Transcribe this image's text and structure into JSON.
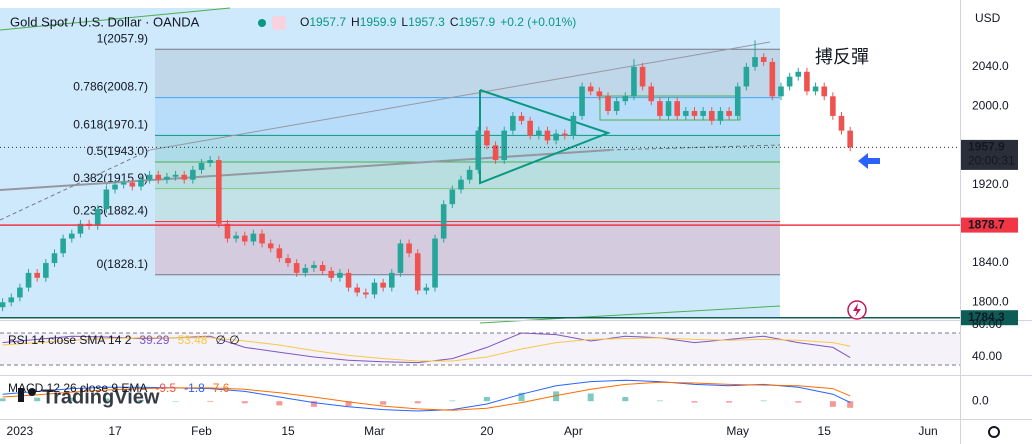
{
  "header": {
    "title": "Gold Spot / U.S. Dollar · OANDA",
    "ohlc": [
      {
        "label": "O",
        "value": 1957.7
      },
      {
        "label": "H",
        "value": 1959.9
      },
      {
        "label": "L",
        "value": 1957.3
      },
      {
        "label": "C",
        "value": 1957.9
      }
    ],
    "change": "+0.2 (+0.01%)",
    "value_color": "#089981"
  },
  "watermark": "TradingView",
  "chart_data": [
    {
      "type": "candlestick",
      "currency": "USD",
      "up_color": "#26a69a",
      "down_color": "#ef5350",
      "xlim": [
        -0.3,
        110.7
      ],
      "xticks": [
        {
          "value": 2,
          "label": "2023"
        },
        {
          "value": 13,
          "label": "17"
        },
        {
          "value": 23,
          "label": "Feb"
        },
        {
          "value": 33,
          "label": "15"
        },
        {
          "value": 43,
          "label": "Mar"
        },
        {
          "value": 56,
          "label": "20"
        },
        {
          "value": 66,
          "label": "Apr"
        },
        {
          "value": 85,
          "label": "May"
        },
        {
          "value": 95,
          "label": "15"
        },
        {
          "value": 107,
          "label": "Jun"
        }
      ],
      "ylim": [
        1784,
        2100
      ],
      "yticks": [
        {
          "value": 2040,
          "label": "2040.0"
        },
        {
          "value": 2000,
          "label": "2000.0"
        },
        {
          "value": 1920,
          "label": "1920.0"
        },
        {
          "value": 1840,
          "label": "1840.0"
        },
        {
          "value": 1800,
          "label": "1800.0"
        }
      ],
      "open": [
        1795,
        1800,
        1805,
        1815,
        1830,
        1825,
        1840,
        1850,
        1865,
        1870,
        1880,
        1878,
        1895,
        1915,
        1920,
        1922,
        1918,
        1925,
        1930,
        1925,
        1928,
        1930,
        1925,
        1935,
        1942,
        1945,
        1880,
        1865,
        1868,
        1862,
        1870,
        1860,
        1855,
        1845,
        1840,
        1830,
        1835,
        1838,
        1832,
        1825,
        1830,
        1815,
        1810,
        1808,
        1820,
        1815,
        1830,
        1860,
        1850,
        1812,
        1815,
        1865,
        1900,
        1915,
        1925,
        1935,
        1975,
        1960,
        1945,
        1975,
        1990,
        1985,
        1970,
        1975,
        1965,
        1972,
        1970,
        1990,
        2020,
        2015,
        2010,
        1995,
        2005,
        2010,
        2040,
        2020,
        2005,
        1990,
        2005,
        1990,
        1995,
        1990,
        1995,
        1985,
        1995,
        1990,
        2020,
        2040,
        2050,
        2045,
        2010,
        2020,
        2030,
        2035,
        2015,
        2020,
        2010,
        1990,
        1975
      ],
      "high": [
        1804,
        1809,
        1819,
        1834,
        1834,
        1844,
        1854,
        1869,
        1874,
        1884,
        1884,
        1899,
        1919,
        1924,
        1926,
        1926,
        1929,
        1934,
        1934,
        1932,
        1934,
        1934,
        1939,
        1946,
        1949,
        1949,
        1884,
        1872,
        1872,
        1874,
        1874,
        1864,
        1859,
        1849,
        1844,
        1839,
        1842,
        1842,
        1836,
        1834,
        1834,
        1819,
        1814,
        1824,
        1824,
        1834,
        1864,
        1864,
        1854,
        1819,
        1869,
        1904,
        1919,
        1929,
        1939,
        1979,
        1979,
        1964,
        1979,
        1994,
        1994,
        1989,
        1979,
        1979,
        1976,
        1976,
        1994,
        2024,
        2024,
        2019,
        2014,
        2009,
        2014,
        2048,
        2044,
        2024,
        2009,
        2009,
        2009,
        1999,
        1999,
        1999,
        1999,
        1999,
        1999,
        2024,
        2044,
        2067,
        2054,
        2049,
        2024,
        2034,
        2039,
        2039,
        2024,
        2024,
        2014,
        1994,
        1979
      ],
      "low": [
        1791,
        1796,
        1801,
        1811,
        1821,
        1821,
        1836,
        1846,
        1861,
        1866,
        1874,
        1874,
        1891,
        1911,
        1916,
        1914,
        1914,
        1921,
        1921,
        1921,
        1924,
        1921,
        1921,
        1931,
        1938,
        1876,
        1861,
        1861,
        1858,
        1858,
        1856,
        1851,
        1841,
        1836,
        1826,
        1826,
        1831,
        1828,
        1821,
        1821,
        1811,
        1806,
        1804,
        1804,
        1811,
        1811,
        1826,
        1846,
        1808,
        1808,
        1811,
        1861,
        1896,
        1911,
        1921,
        1931,
        1956,
        1941,
        1941,
        1971,
        1981,
        1966,
        1966,
        1961,
        1961,
        1966,
        1966,
        1986,
        2011,
        2006,
        1991,
        1991,
        2001,
        2006,
        2016,
        2001,
        1986,
        1986,
        1986,
        1986,
        1986,
        1986,
        1981,
        1981,
        1986,
        1986,
        2016,
        2036,
        2041,
        2006,
        2006,
        2016,
        2026,
        2011,
        2011,
        2006,
        1986,
        1971,
        1953.9
      ],
      "close": [
        1800,
        1805,
        1815,
        1830,
        1825,
        1840,
        1850,
        1865,
        1870,
        1880,
        1878,
        1895,
        1915,
        1920,
        1922,
        1918,
        1925,
        1930,
        1925,
        1928,
        1930,
        1925,
        1935,
        1942,
        1945,
        1880,
        1865,
        1868,
        1862,
        1870,
        1860,
        1855,
        1845,
        1840,
        1830,
        1835,
        1838,
        1832,
        1825,
        1830,
        1815,
        1810,
        1808,
        1820,
        1815,
        1830,
        1860,
        1850,
        1812,
        1815,
        1865,
        1900,
        1915,
        1925,
        1935,
        1975,
        1960,
        1945,
        1975,
        1990,
        1985,
        1970,
        1975,
        1965,
        1972,
        1970,
        1990,
        2020,
        2015,
        2010,
        1995,
        2005,
        2010,
        2040,
        2020,
        2005,
        1990,
        2005,
        1990,
        1995,
        1990,
        1995,
        1985,
        1995,
        1990,
        2020,
        2040,
        2050,
        2045,
        2010,
        2020,
        2030,
        2035,
        2015,
        2020,
        2010,
        1990,
        1975,
        1957.9
      ],
      "fib_levels": [
        {
          "value": 2057.9,
          "label": "1(2057.9)",
          "color": "#787b86"
        },
        {
          "value": 2008.7,
          "label": "0.786(2008.7)",
          "color": "#42a5f5"
        },
        {
          "value": 1970.1,
          "label": "0.618(1970.1)",
          "color": "#089981"
        },
        {
          "value": 1943.0,
          "label": "0.5(1943.0)",
          "color": "#4caf50"
        },
        {
          "value": 1915.9,
          "label": "0.382(1915.9)",
          "color": "#81c784"
        },
        {
          "value": 1882.4,
          "label": "0.236(1882.4)",
          "color": "#f23645"
        },
        {
          "value": 1828.1,
          "label": "0(1828.1)",
          "color": "#787b86"
        }
      ],
      "price_lines": [
        {
          "value": 1957.9,
          "time": "20:00:31",
          "color": "#2a2e39",
          "style": "dotted"
        },
        {
          "value": 1878.7,
          "color": "#f23645",
          "style": "solid"
        },
        {
          "value": 1784.3,
          "color": "#0d5d56",
          "style": "solid"
        }
      ],
      "annotation": "搏反彈"
    },
    {
      "type": "rsi",
      "title": "RSI 14 close SMA 14 2",
      "extra_legend": "∅ ∅",
      "xlim": [
        -0.3,
        110.7
      ],
      "ylim": [
        17.5,
        83.75
      ],
      "yticks": [
        {
          "value": 80,
          "label": "80.00"
        },
        {
          "value": 40,
          "label": "40.00"
        }
      ],
      "bands": [
        70,
        30
      ],
      "x": [
        0,
        4,
        8,
        12,
        16,
        20,
        24,
        28,
        32,
        36,
        40,
        44,
        48,
        52,
        56,
        60,
        64,
        68,
        72,
        76,
        80,
        84,
        88,
        92,
        96,
        98
      ],
      "series": [
        {
          "color": "#7e57c2",
          "values": [
            58,
            62,
            66,
            65,
            63,
            64,
            66,
            52,
            46,
            40,
            36,
            34,
            33,
            38,
            52,
            70,
            68,
            60,
            66,
            64,
            58,
            62,
            66,
            58,
            52,
            39.29
          ]
        },
        {
          "color": "#f7c948",
          "values": [
            55,
            58,
            61,
            63,
            64,
            64,
            64,
            60,
            55,
            48,
            42,
            38,
            35,
            35,
            40,
            50,
            58,
            62,
            63,
            64,
            62,
            61,
            62,
            61,
            58,
            53.48
          ]
        }
      ]
    },
    {
      "type": "macd",
      "title": "MACD 12 26 close 9 EMA",
      "xlim": [
        -0.3,
        110.7
      ],
      "ylim": [
        -24,
        36
      ],
      "yticks": [
        {
          "value": 0,
          "label": "0.0"
        }
      ],
      "x": [
        0,
        4,
        8,
        12,
        16,
        20,
        24,
        28,
        32,
        36,
        40,
        44,
        48,
        52,
        56,
        60,
        64,
        68,
        72,
        76,
        80,
        84,
        88,
        92,
        96,
        98
      ],
      "histogram": {
        "up_color": "#26a69a",
        "down_color": "#ef5350",
        "values": [
          4,
          5,
          5,
          4,
          2,
          0,
          -1,
          -3,
          -6,
          -8,
          -7,
          -5,
          -3,
          1,
          6,
          12,
          14,
          11,
          6,
          1,
          -2,
          -2,
          1,
          -2,
          -8,
          -9.5
        ]
      },
      "series": [
        {
          "color": "#2962ff",
          "values": [
            10,
            14,
            18,
            20,
            20,
            19,
            18,
            14,
            6,
            -2,
            -8,
            -12,
            -14,
            -12,
            -4,
            10,
            22,
            28,
            30,
            28,
            24,
            22,
            24,
            20,
            10,
            -1.8
          ]
        },
        {
          "color": "#ff6d00",
          "values": [
            6,
            9,
            13,
            16,
            18,
            19,
            19,
            17,
            12,
            6,
            -1,
            -7,
            -11,
            -13,
            -10,
            -2,
            8,
            17,
            24,
            27,
            26,
            24,
            23,
            22,
            18,
            7.6
          ]
        }
      ]
    }
  ]
}
